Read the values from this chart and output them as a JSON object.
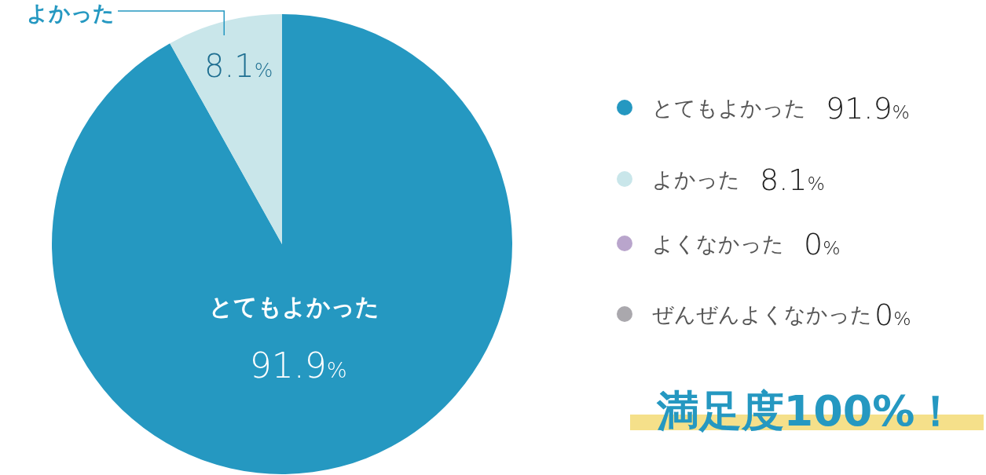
{
  "chart_data": {
    "type": "pie",
    "categories": [
      "とてもよかった",
      "よかった",
      "よくなかった",
      "ぜんぜんよくなかった"
    ],
    "values": [
      91.9,
      8.1,
      0,
      0
    ],
    "colors": [
      "#2598c1",
      "#c9e6ea",
      "#b9a5cc",
      "#aaa8ad"
    ],
    "value_labels": [
      "91.9%",
      "8.1%",
      "0%",
      "0%"
    ],
    "legend": "right",
    "annotations": [
      "満足度100%！"
    ]
  }
}
